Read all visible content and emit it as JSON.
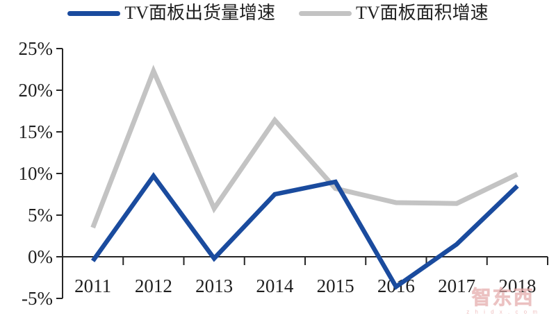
{
  "legend": {
    "items": [
      {
        "label": "TV面板出货量增速",
        "color": "#1a4b9e"
      },
      {
        "label": "TV面板面积增速",
        "color": "#c3c3c3"
      }
    ]
  },
  "chart_data": {
    "type": "line",
    "title": "",
    "xlabel": "",
    "ylabel": "",
    "categories": [
      "2011",
      "2012",
      "2013",
      "2014",
      "2015",
      "2016",
      "2017",
      "2018"
    ],
    "series": [
      {
        "name": "TV面板出货量增速",
        "color": "#1a4b9e",
        "stroke_width": 6.5,
        "values": [
          -0.5,
          9.7,
          -0.2,
          7.5,
          9.0,
          -3.6,
          1.5,
          8.5
        ]
      },
      {
        "name": "TV面板面积增速",
        "color": "#c3c3c3",
        "stroke_width": 7,
        "values": [
          3.5,
          22.3,
          5.8,
          16.4,
          8.2,
          6.5,
          6.4,
          9.9
        ]
      }
    ],
    "y_ticks": [
      {
        "value": 25,
        "label": "25%"
      },
      {
        "value": 20,
        "label": "20%"
      },
      {
        "value": 15,
        "label": "15%"
      },
      {
        "value": 10,
        "label": "10%"
      },
      {
        "value": 5,
        "label": "5%"
      },
      {
        "value": 0,
        "label": "0%"
      },
      {
        "value": -5,
        "label": "-5%"
      }
    ],
    "ylim": [
      -5,
      25
    ],
    "grid": false,
    "legend_position": "top-center",
    "axis_color": "#262626",
    "zero_line_at": 0
  },
  "watermark": {
    "logo_text": "智东西",
    "domain": "z h i d x . c o m"
  }
}
